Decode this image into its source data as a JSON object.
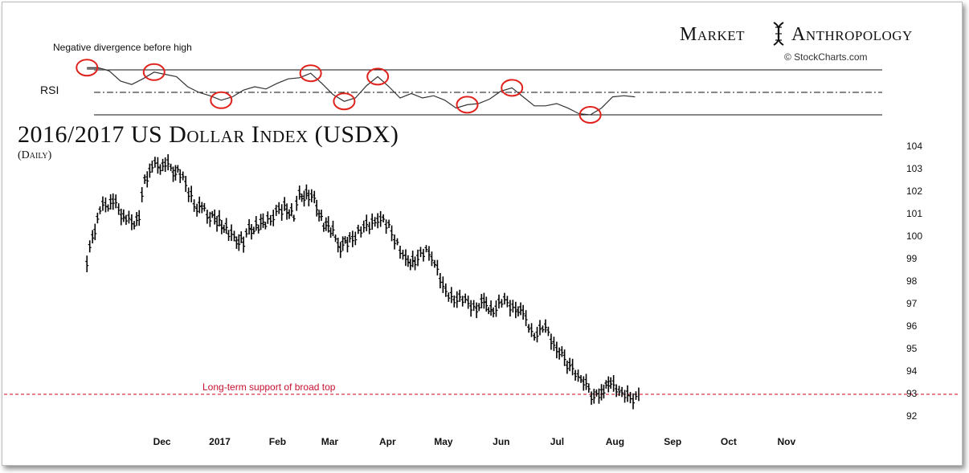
{
  "header": {
    "brand_left": "Market",
    "brand_right": "Anthropology",
    "credit": "© StockCharts.com"
  },
  "colors": {
    "price": "#000000",
    "rsi": "#333333",
    "support_line": "#d0021b",
    "highlight_circle": "#e0221c",
    "rsi_fill": "#6f6f6f"
  },
  "chart_data": [
    {
      "type": "line",
      "panel": "RSI",
      "ylabel": "RSI",
      "annotation": "Negative divergence before high",
      "reference_lines": [
        70,
        50,
        30
      ],
      "ylim": [
        25,
        75
      ],
      "x": [
        "2016-11-08",
        "2016-11-14",
        "2016-11-20",
        "2016-11-26",
        "2016-12-02",
        "2016-12-08",
        "2016-12-14",
        "2016-12-20",
        "2016-12-26",
        "2017-01-01",
        "2017-01-07",
        "2017-01-13",
        "2017-01-19",
        "2017-01-25",
        "2017-01-31",
        "2017-02-06",
        "2017-02-12",
        "2017-02-18",
        "2017-02-24",
        "2017-03-02",
        "2017-03-08",
        "2017-03-14",
        "2017-03-20",
        "2017-03-26",
        "2017-04-01",
        "2017-04-07",
        "2017-04-13",
        "2017-04-19",
        "2017-04-25",
        "2017-05-01",
        "2017-05-07",
        "2017-05-13",
        "2017-05-19",
        "2017-05-25",
        "2017-05-31",
        "2017-06-06",
        "2017-06-12",
        "2017-06-18",
        "2017-06-24",
        "2017-06-30",
        "2017-07-06",
        "2017-07-12",
        "2017-07-18",
        "2017-07-24",
        "2017-07-30",
        "2017-08-05",
        "2017-08-11",
        "2017-08-17",
        "2017-08-23",
        "2017-08-29"
      ],
      "values": [
        72,
        72,
        69,
        60,
        57,
        62,
        68,
        66,
        64,
        55,
        50,
        47,
        43,
        46,
        52,
        55,
        53,
        58,
        62,
        63,
        67,
        58,
        48,
        42,
        45,
        56,
        64,
        55,
        45,
        49,
        45,
        47,
        43,
        36,
        39,
        40,
        44,
        51,
        54,
        46,
        38,
        38,
        40,
        36,
        31,
        30,
        36,
        46,
        47,
        46
      ]
    },
    {
      "type": "line",
      "title": "2016/2017 US Dollar Index (USDX)",
      "subtitle": "(Daily)",
      "ylim": [
        91.5,
        104.3
      ],
      "yticks": [
        92,
        93,
        94,
        95,
        96,
        97,
        98,
        99,
        100,
        101,
        102,
        103,
        104
      ],
      "xticks": [
        "Dec",
        "2017",
        "Feb",
        "Mar",
        "Apr",
        "May",
        "Jun",
        "Jul",
        "Aug",
        "Sep",
        "Oct",
        "Nov"
      ],
      "support_level": 93,
      "support_label": "Long-term support of broad top",
      "x": [
        "2016-11-08",
        "2016-11-11",
        "2016-11-15",
        "2016-11-18",
        "2016-11-22",
        "2016-11-25",
        "2016-11-29",
        "2016-12-02",
        "2016-12-06",
        "2016-12-09",
        "2016-12-13",
        "2016-12-16",
        "2016-12-20",
        "2016-12-23",
        "2016-12-28",
        "2017-01-03",
        "2017-01-06",
        "2017-01-10",
        "2017-01-13",
        "2017-01-18",
        "2017-01-23",
        "2017-01-26",
        "2017-01-31",
        "2017-02-03",
        "2017-02-08",
        "2017-02-13",
        "2017-02-16",
        "2017-02-22",
        "2017-02-27",
        "2017-03-02",
        "2017-03-07",
        "2017-03-10",
        "2017-03-15",
        "2017-03-20",
        "2017-03-24",
        "2017-03-29",
        "2017-04-04",
        "2017-04-10",
        "2017-04-13",
        "2017-04-19",
        "2017-04-25",
        "2017-04-28",
        "2017-05-03",
        "2017-05-09",
        "2017-05-12",
        "2017-05-18",
        "2017-05-24",
        "2017-05-30",
        "2017-06-05",
        "2017-06-09",
        "2017-06-14",
        "2017-06-20",
        "2017-06-26",
        "2017-06-30",
        "2017-07-06",
        "2017-07-12",
        "2017-07-18",
        "2017-07-25",
        "2017-07-31",
        "2017-08-07",
        "2017-08-11",
        "2017-08-16",
        "2017-08-22",
        "2017-08-28",
        "2017-08-31"
      ],
      "values": [
        98.8,
        100.0,
        101.2,
        101.4,
        101.6,
        101.2,
        100.8,
        100.6,
        100.9,
        102.5,
        103.2,
        103.1,
        103.3,
        103.0,
        102.8,
        101.8,
        101.3,
        101.2,
        100.9,
        100.7,
        100.2,
        99.9,
        99.8,
        100.3,
        100.5,
        100.7,
        101.0,
        101.3,
        101.0,
        101.8,
        101.9,
        101.6,
        100.6,
        100.2,
        99.6,
        99.8,
        100.4,
        100.5,
        100.9,
        100.4,
        99.5,
        98.9,
        99.0,
        99.3,
        99.2,
        97.7,
        97.3,
        97.1,
        96.9,
        97.0,
        96.8,
        97.1,
        96.9,
        96.5,
        95.7,
        95.9,
        95.1,
        94.2,
        93.8,
        92.8,
        93.2,
        93.4,
        93.2,
        92.6,
        93.0
      ]
    }
  ]
}
